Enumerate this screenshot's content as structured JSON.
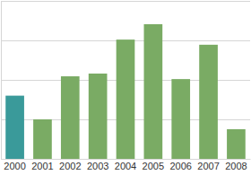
{
  "chart_data": {
    "type": "bar",
    "categories": [
      "2000",
      "2001",
      "2002",
      "2003",
      "2004",
      "2005",
      "2006",
      "2007",
      "2008"
    ],
    "values": [
      16,
      10,
      20.9,
      21.6,
      30.2,
      34.1,
      20.2,
      28.9,
      7.5
    ],
    "colors": [
      "#3a9a9a",
      "#7aab64",
      "#7aab64",
      "#7aab64",
      "#7aab64",
      "#7aab64",
      "#7aab64",
      "#7aab64",
      "#7aab64"
    ],
    "ylim": [
      0,
      40
    ],
    "yticks": [
      0,
      10,
      20,
      30,
      40
    ],
    "grid": true,
    "tick_labels": "x"
  }
}
